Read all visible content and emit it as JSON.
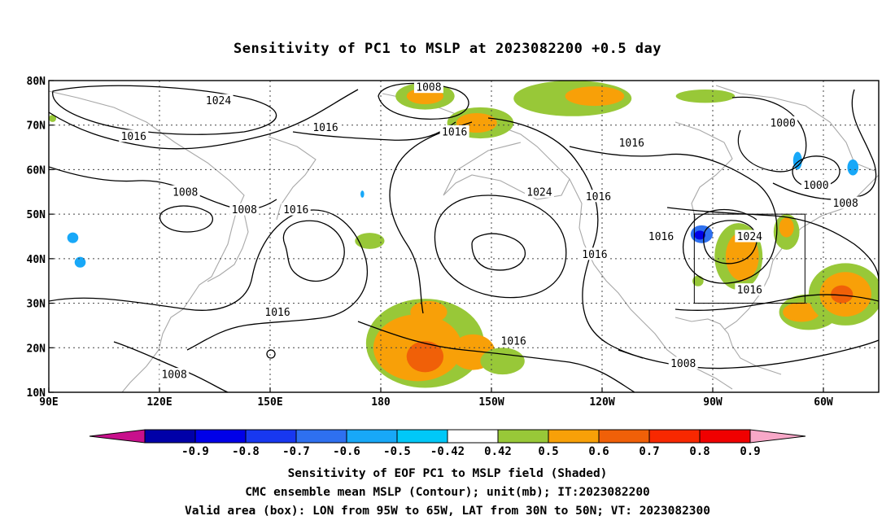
{
  "title": "Sensitivity of PC1 to MSLP at 2023082200 +0.5 day",
  "axes": {
    "lon_ticks": [
      {
        "lon": 90,
        "label": "90E"
      },
      {
        "lon": 120,
        "label": "120E"
      },
      {
        "lon": 150,
        "label": "150E"
      },
      {
        "lon": 180,
        "label": "180"
      },
      {
        "lon": 210,
        "label": "150W"
      },
      {
        "lon": 240,
        "label": "120W"
      },
      {
        "lon": 270,
        "label": "90W"
      },
      {
        "lon": 300,
        "label": "60W"
      }
    ],
    "lat_ticks": [
      {
        "lat": 80,
        "label": "80N"
      },
      {
        "lat": 70,
        "label": "70N"
      },
      {
        "lat": 60,
        "label": "60N"
      },
      {
        "lat": 50,
        "label": "50N"
      },
      {
        "lat": 40,
        "label": "40N"
      },
      {
        "lat": 30,
        "label": "30N"
      },
      {
        "lat": 20,
        "label": "20N"
      },
      {
        "lat": 10,
        "label": "10N"
      }
    ],
    "lon_range": [
      90,
      315
    ],
    "lat_range": [
      10,
      80
    ],
    "grid": true
  },
  "validity_box": {
    "lon_min": 265,
    "lon_max": 295,
    "lat_min": 30,
    "lat_max": 50
  },
  "contour_labels": [
    {
      "text": "1024",
      "lon": 136,
      "lat": 75.5
    },
    {
      "text": "1008",
      "lon": 193,
      "lat": 78.5
    },
    {
      "text": "1016",
      "lon": 113,
      "lat": 67.5
    },
    {
      "text": "1016",
      "lon": 165,
      "lat": 69.5
    },
    {
      "text": "1016",
      "lon": 200,
      "lat": 68.5
    },
    {
      "text": "1016",
      "lon": 248,
      "lat": 66
    },
    {
      "text": "1000",
      "lon": 289,
      "lat": 70.5
    },
    {
      "text": "1000",
      "lon": 298,
      "lat": 56.5
    },
    {
      "text": "1008",
      "lon": 306,
      "lat": 52.5
    },
    {
      "text": "1008",
      "lon": 127,
      "lat": 55
    },
    {
      "text": "1008",
      "lon": 143,
      "lat": 51
    },
    {
      "text": "1016",
      "lon": 157,
      "lat": 51
    },
    {
      "text": "1024",
      "lon": 223,
      "lat": 55
    },
    {
      "text": "1016",
      "lon": 239,
      "lat": 54
    },
    {
      "text": "1016",
      "lon": 256,
      "lat": 45
    },
    {
      "text": "1016",
      "lon": 238,
      "lat": 41
    },
    {
      "text": "1024",
      "lon": 280,
      "lat": 45
    },
    {
      "text": "1016",
      "lon": 280,
      "lat": 33
    },
    {
      "text": "1016",
      "lon": 152,
      "lat": 28
    },
    {
      "text": "1016",
      "lon": 216,
      "lat": 21.5
    },
    {
      "text": "1008",
      "lon": 124,
      "lat": 14
    },
    {
      "text": "1008",
      "lon": 262,
      "lat": 16.5
    }
  ],
  "shaded_regions": [
    {
      "level": 0.5,
      "lon": 192,
      "lat": 76.5,
      "rx": 8,
      "ry": 3
    },
    {
      "level": 0.6,
      "lon": 192,
      "lat": 76.5,
      "rx": 5,
      "ry": 1.8
    },
    {
      "level": 0.5,
      "lon": 207,
      "lat": 70.5,
      "rx": 9,
      "ry": 3.5
    },
    {
      "level": 0.6,
      "lon": 206,
      "lat": 70.5,
      "rx": 5.5,
      "ry": 2.2
    },
    {
      "level": 0.5,
      "lon": 232,
      "lat": 76,
      "rx": 16,
      "ry": 4
    },
    {
      "level": 0.6,
      "lon": 238,
      "lat": 76.5,
      "rx": 8,
      "ry": 2.2
    },
    {
      "level": 0.5,
      "lon": 268,
      "lat": 76.5,
      "rx": 8,
      "ry": 1.5
    },
    {
      "level": 0.5,
      "lon": 177,
      "lat": 44,
      "rx": 4,
      "ry": 1.8
    },
    {
      "level": 0.5,
      "lon": 277,
      "lat": 40.5,
      "rx": 6.5,
      "ry": 7.5
    },
    {
      "level": 0.6,
      "lon": 278,
      "lat": 40.5,
      "rx": 4.5,
      "ry": 5.5
    },
    {
      "level": 0.5,
      "lon": 290,
      "lat": 46,
      "rx": 3.5,
      "ry": 4
    },
    {
      "level": 0.6,
      "lon": 290,
      "lat": 47,
      "rx": 2,
      "ry": 2.2
    },
    {
      "level": 0.5,
      "lon": 296,
      "lat": 28,
      "rx": 8,
      "ry": 4
    },
    {
      "level": 0.6,
      "lon": 294,
      "lat": 28,
      "rx": 5,
      "ry": 2.2
    },
    {
      "level": 0.5,
      "lon": 306,
      "lat": 32,
      "rx": 10,
      "ry": 7
    },
    {
      "level": 0.6,
      "lon": 306,
      "lat": 32,
      "rx": 7,
      "ry": 5
    },
    {
      "level": 0.7,
      "lon": 305,
      "lat": 32,
      "rx": 3,
      "ry": 2
    },
    {
      "level": 0.5,
      "lon": 192,
      "lat": 21,
      "rx": 16,
      "ry": 10
    },
    {
      "level": 0.6,
      "lon": 190,
      "lat": 20,
      "rx": 12,
      "ry": 7.5
    },
    {
      "level": 0.7,
      "lon": 192,
      "lat": 18,
      "rx": 5,
      "ry": 3.5
    },
    {
      "level": 0.6,
      "lon": 205,
      "lat": 19,
      "rx": 6,
      "ry": 4
    },
    {
      "level": 0.6,
      "lon": 193,
      "lat": 28,
      "rx": 5,
      "ry": 2.5
    },
    {
      "level": 0.5,
      "lon": 213,
      "lat": 17,
      "rx": 6,
      "ry": 3
    },
    {
      "level": 0.5,
      "lon": 266,
      "lat": 35,
      "rx": 1.5,
      "ry": 1.2
    },
    {
      "level": -0.6,
      "lon": 267,
      "lat": 45.5,
      "rx": 3,
      "ry": 2
    },
    {
      "level": -0.8,
      "lon": 266.5,
      "lat": 45.3,
      "rx": 1.5,
      "ry": 1
    },
    {
      "level": -0.5,
      "lon": 293,
      "lat": 62,
      "rx": 1.2,
      "ry": 2
    },
    {
      "level": -0.5,
      "lon": 308,
      "lat": 60.5,
      "rx": 1.5,
      "ry": 1.8
    },
    {
      "level": -0.5,
      "lon": 96.5,
      "lat": 44.7,
      "rx": 1.5,
      "ry": 1.2
    },
    {
      "level": -0.5,
      "lon": 98.5,
      "lat": 39.2,
      "rx": 1.5,
      "ry": 1.2
    },
    {
      "level": -0.5,
      "lon": 175,
      "lat": 54.5,
      "rx": 0.5,
      "ry": 0.8
    },
    {
      "level": 0.5,
      "lon": 91,
      "lat": 71.5,
      "rx": 1,
      "ry": 0.8
    }
  ],
  "colorbar": {
    "labels": [
      "-0.9",
      "-0.8",
      "-0.7",
      "-0.6",
      "-0.5",
      "-0.42",
      "0.42",
      "0.5",
      "0.6",
      "0.7",
      "0.8",
      "0.9"
    ],
    "colors": [
      "#0000a8",
      "#0000e8",
      "#1838f0",
      "#2e70f0",
      "#18a8f8",
      "#00c8f8",
      "#ffffff",
      "#98c838",
      "#f8a008",
      "#f06008",
      "#f82800",
      "#f00000"
    ],
    "low_end_color": "#c8108c",
    "high_end_color": "#f8a8c8"
  },
  "captions": [
    "Sensitivity of EOF PC1 to MSLP field (Shaded)",
    "CMC ensemble mean MSLP (Contour); unit(mb); IT:2023082200",
    "Valid area (box): LON from 95W to 65W, LAT from 30N to 50N; VT: 2023082300"
  ]
}
